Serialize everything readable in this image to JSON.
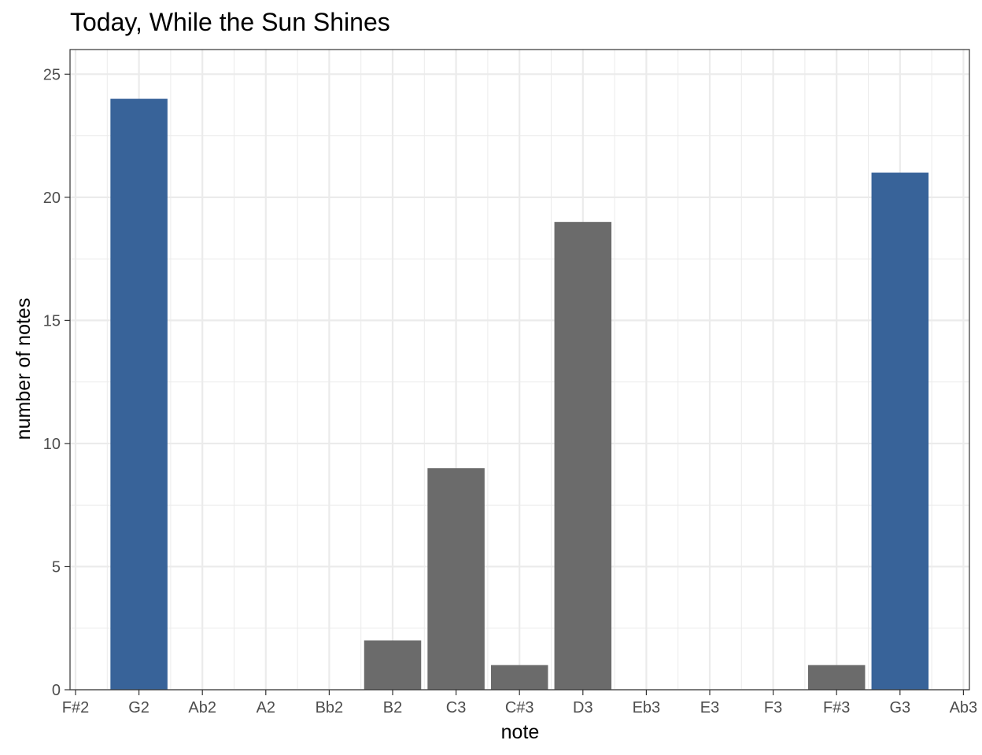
{
  "chart_data": {
    "type": "bar",
    "title": "Today, While the Sun Shines",
    "xlabel": "note",
    "ylabel": "number of notes",
    "categories": [
      "F#2",
      "G2",
      "Ab2",
      "A2",
      "Bb2",
      "B2",
      "C3",
      "C#3",
      "D3",
      "Eb3",
      "E3",
      "F3",
      "F#3",
      "G3",
      "Ab3"
    ],
    "values": [
      0,
      24,
      0,
      0,
      0,
      2,
      9,
      1,
      19,
      0,
      0,
      0,
      1,
      21,
      0
    ],
    "highlighted": [
      "G2",
      "G3"
    ],
    "ylim": [
      0,
      26
    ],
    "yticks": [
      0,
      5,
      10,
      15,
      20,
      25
    ],
    "grid": true,
    "legend": "none",
    "colors": {
      "bar": "#6b6b6b",
      "highlight": "#386399",
      "grid": "#ebebeb",
      "panel_border": "#333333"
    }
  }
}
